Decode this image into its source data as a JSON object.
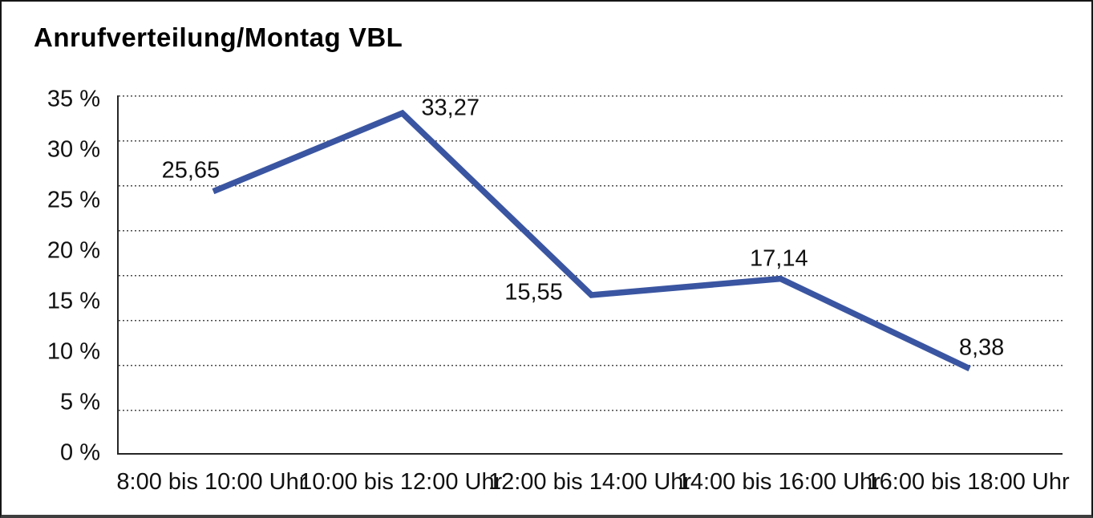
{
  "chart_data": {
    "type": "line",
    "title": "Anrufverteilung/Montag VBL",
    "categories": [
      "8:00 bis 10:00 Uhr",
      "10:00 bis 12:00 Uhr",
      "12:00 bis 14:00 Uhr",
      "14:00 bis 16:00 Uhr",
      "16:00 bis 18:00 Uhr"
    ],
    "values": [
      25.65,
      33.27,
      15.55,
      17.14,
      8.38
    ],
    "value_labels": [
      "25,65",
      "33,27",
      "15,55",
      "17,14",
      "8,38"
    ],
    "y_tick_labels": [
      "35 %",
      "30 %",
      "25 %",
      "20 %",
      "15 %",
      "10 %",
      "5 %",
      "0 %"
    ],
    "ylim": [
      0,
      35
    ],
    "xlabel": "",
    "ylabel": "",
    "grid": "horizontal-dotted",
    "legend": "none",
    "series_color": "#3A55A1",
    "axis_color": "#262626"
  }
}
